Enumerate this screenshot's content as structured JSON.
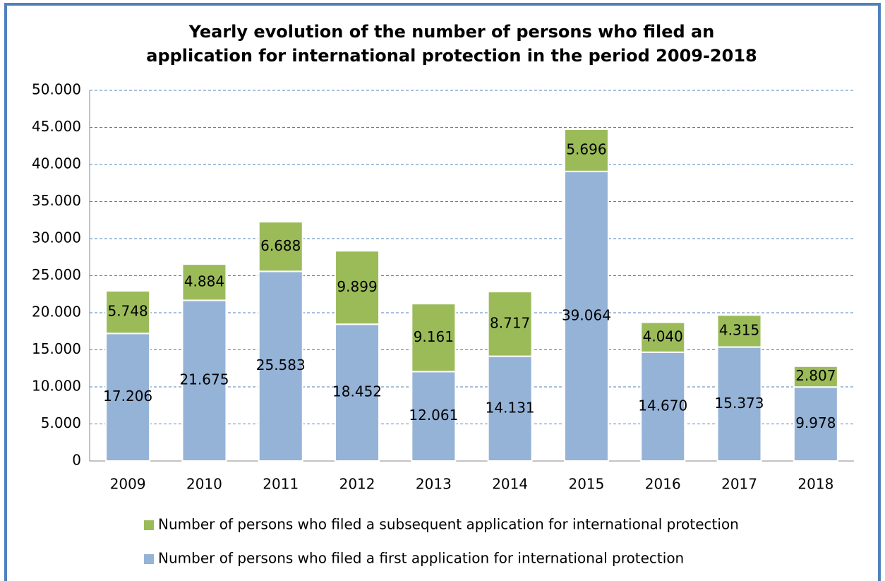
{
  "chart_data": {
    "type": "stacked_bar",
    "title": [
      "Yearly evolution of the number of persons who filed an",
      "application for international protection in the period 2009-2018"
    ],
    "categories": [
      "2009",
      "2010",
      "2011",
      "2012",
      "2013",
      "2014",
      "2015",
      "2016",
      "2017",
      "2018"
    ],
    "series": [
      {
        "name": "Number of persons who filed a first application for international protection",
        "color": "#95b3d7",
        "values": [
          17206,
          21675,
          25583,
          18452,
          12061,
          14131,
          39064,
          14670,
          15373,
          9978
        ],
        "value_labels": [
          "17.206",
          "21.675",
          "25.583",
          "18.452",
          "12.061",
          "14.131",
          "39.064",
          "14.670",
          "15.373",
          "9.978"
        ]
      },
      {
        "name": "Number of persons who filed a subsequent application for international protection",
        "color": "#9bbb59",
        "values": [
          5748,
          4884,
          6688,
          9899,
          9161,
          8717,
          5696,
          4040,
          4315,
          2807
        ],
        "value_labels": [
          "5.748",
          "4.884",
          "6.688",
          "9.899",
          "9.161",
          "8.717",
          "5.696",
          "4.040",
          "4.315",
          "2.807"
        ]
      }
    ],
    "ylim": [
      0,
      50000
    ],
    "yticks": [
      0,
      {
        "value": 5000,
        "label": "5.000"
      },
      {
        "value": 10000,
        "label": "10.000"
      },
      {
        "value": 15000,
        "label": "15.000"
      },
      {
        "value": 20000,
        "label": "20.000"
      },
      {
        "value": 25000,
        "label": "25.000"
      },
      {
        "value": 30000,
        "label": "30.000"
      },
      {
        "value": 35000,
        "label": "35.000"
      },
      {
        "value": 40000,
        "label": "40.000"
      },
      {
        "value": 45000,
        "label": "45.000"
      },
      {
        "value": 50000,
        "label": "50.000"
      }
    ],
    "grid": true,
    "legend": "bottom"
  }
}
